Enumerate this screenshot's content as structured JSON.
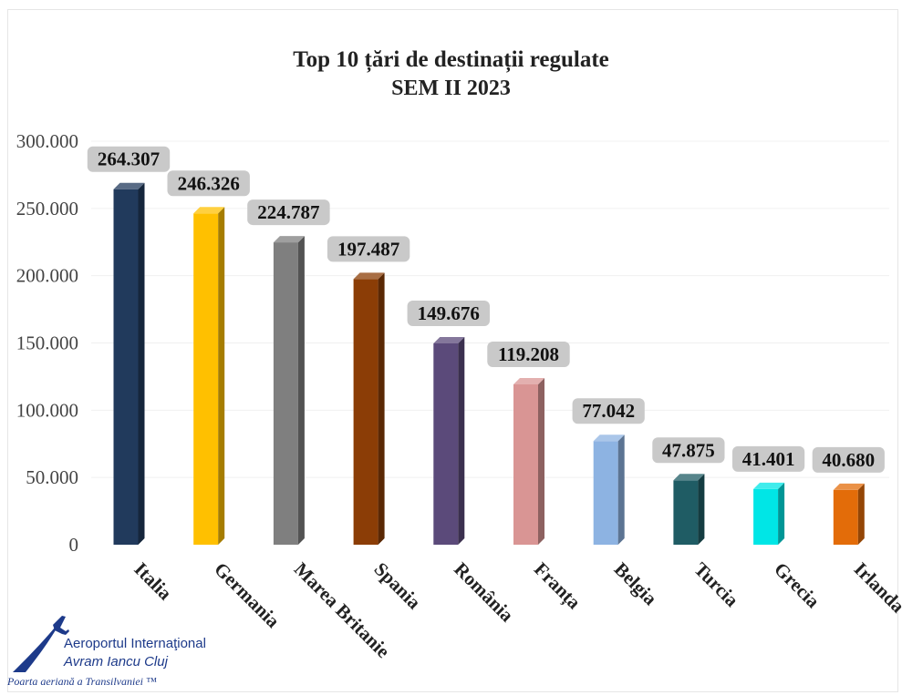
{
  "chart_data": {
    "type": "bar",
    "title": "Top 10 țări de destinații regulate",
    "subtitle": "SEM II 2023",
    "categories": [
      "Italia",
      "Germania",
      "Marea Britanie",
      "Spania",
      "România",
      "Franța",
      "Belgia",
      "Turcia",
      "Grecia",
      "Irlanda"
    ],
    "values": [
      264307,
      246326,
      224787,
      197487,
      149676,
      119208,
      77042,
      47875,
      41401,
      40680
    ],
    "data_labels": [
      "264.307",
      "246.326",
      "224.787",
      "197.487",
      "149.676",
      "119.208",
      "77.042",
      "47.875",
      "41.401",
      "40.680"
    ],
    "colors": [
      "#213a5c",
      "#ffc000",
      "#7f7f7f",
      "#8b3d06",
      "#5b4a7a",
      "#d99594",
      "#8db3e2",
      "#1f5c64",
      "#00e6e6",
      "#e36c09"
    ],
    "ylim": [
      0,
      300000
    ],
    "yticks": [
      0,
      50000,
      100000,
      150000,
      200000,
      250000,
      300000
    ],
    "ytick_labels": [
      "0",
      "50.000",
      "100.000",
      "150.000",
      "200.000",
      "250.000",
      "300.000"
    ],
    "grid": true,
    "legend": "none",
    "xlabel": "",
    "ylabel": ""
  },
  "logo": {
    "line1": "Aeroportul Internaţional",
    "line2": "Avram Iancu Cluj",
    "tagline": "Poarta aeriană a Transilvaniei ™"
  }
}
